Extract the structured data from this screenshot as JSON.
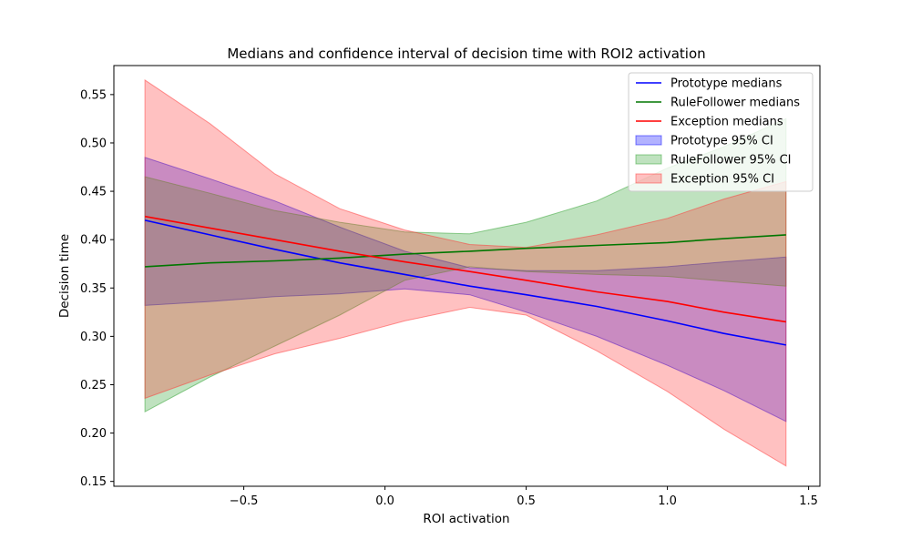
{
  "chart_data": {
    "type": "line",
    "title": "Medians and confidence interval of decision time with ROI2 activation",
    "xlabel": "ROI activation",
    "ylabel": "Decision time",
    "xlim": [
      -0.96,
      1.54
    ],
    "ylim": [
      0.145,
      0.58
    ],
    "xticks": [
      -0.5,
      0.0,
      0.5,
      1.0,
      1.5
    ],
    "xtick_labels": [
      "−0.5",
      "0.0",
      "0.5",
      "1.0",
      "1.5"
    ],
    "yticks": [
      0.15,
      0.2,
      0.25,
      0.3,
      0.35,
      0.4,
      0.45,
      0.5,
      0.55
    ],
    "ytick_labels": [
      "0.15",
      "0.20",
      "0.25",
      "0.30",
      "0.35",
      "0.40",
      "0.45",
      "0.50",
      "0.55"
    ],
    "grid": false,
    "legend_position": "top-right",
    "x": [
      -0.85,
      -0.62,
      -0.39,
      -0.16,
      0.07,
      0.3,
      0.5,
      0.75,
      1.0,
      1.2,
      1.42
    ],
    "series": [
      {
        "name": "Prototype medians",
        "color": "#0000ff",
        "values": [
          0.42,
          0.405,
          0.39,
          0.376,
          0.364,
          0.352,
          0.343,
          0.331,
          0.316,
          0.303,
          0.291
        ]
      },
      {
        "name": "RuleFollower medians",
        "color": "#007700",
        "values": [
          0.372,
          0.376,
          0.378,
          0.381,
          0.385,
          0.388,
          0.391,
          0.394,
          0.397,
          0.401,
          0.405
        ]
      },
      {
        "name": "Exception medians",
        "color": "#ff0000",
        "values": [
          0.424,
          0.412,
          0.4,
          0.388,
          0.377,
          0.367,
          0.358,
          0.346,
          0.336,
          0.325,
          0.315
        ]
      }
    ],
    "bands": [
      {
        "name": "Prototype 95% CI",
        "color": "#0000ff",
        "lower": [
          0.332,
          0.336,
          0.341,
          0.344,
          0.349,
          0.343,
          0.325,
          0.3,
          0.27,
          0.244,
          0.212
        ],
        "upper": [
          0.485,
          0.463,
          0.44,
          0.413,
          0.388,
          0.371,
          0.368,
          0.368,
          0.372,
          0.377,
          0.382
        ]
      },
      {
        "name": "RuleFollower 95% CI",
        "color": "#2ca02c",
        "lower": [
          0.222,
          0.258,
          0.29,
          0.322,
          0.358,
          0.372,
          0.367,
          0.364,
          0.362,
          0.357,
          0.352
        ],
        "upper": [
          0.465,
          0.448,
          0.43,
          0.418,
          0.408,
          0.406,
          0.418,
          0.44,
          0.474,
          0.496,
          0.525
        ]
      },
      {
        "name": "Exception 95% CI",
        "color": "#ff3333",
        "lower": [
          0.236,
          0.26,
          0.282,
          0.298,
          0.316,
          0.33,
          0.322,
          0.285,
          0.243,
          0.204,
          0.166
        ],
        "upper": [
          0.565,
          0.52,
          0.468,
          0.432,
          0.41,
          0.395,
          0.392,
          0.405,
          0.422,
          0.442,
          0.46
        ]
      }
    ]
  }
}
